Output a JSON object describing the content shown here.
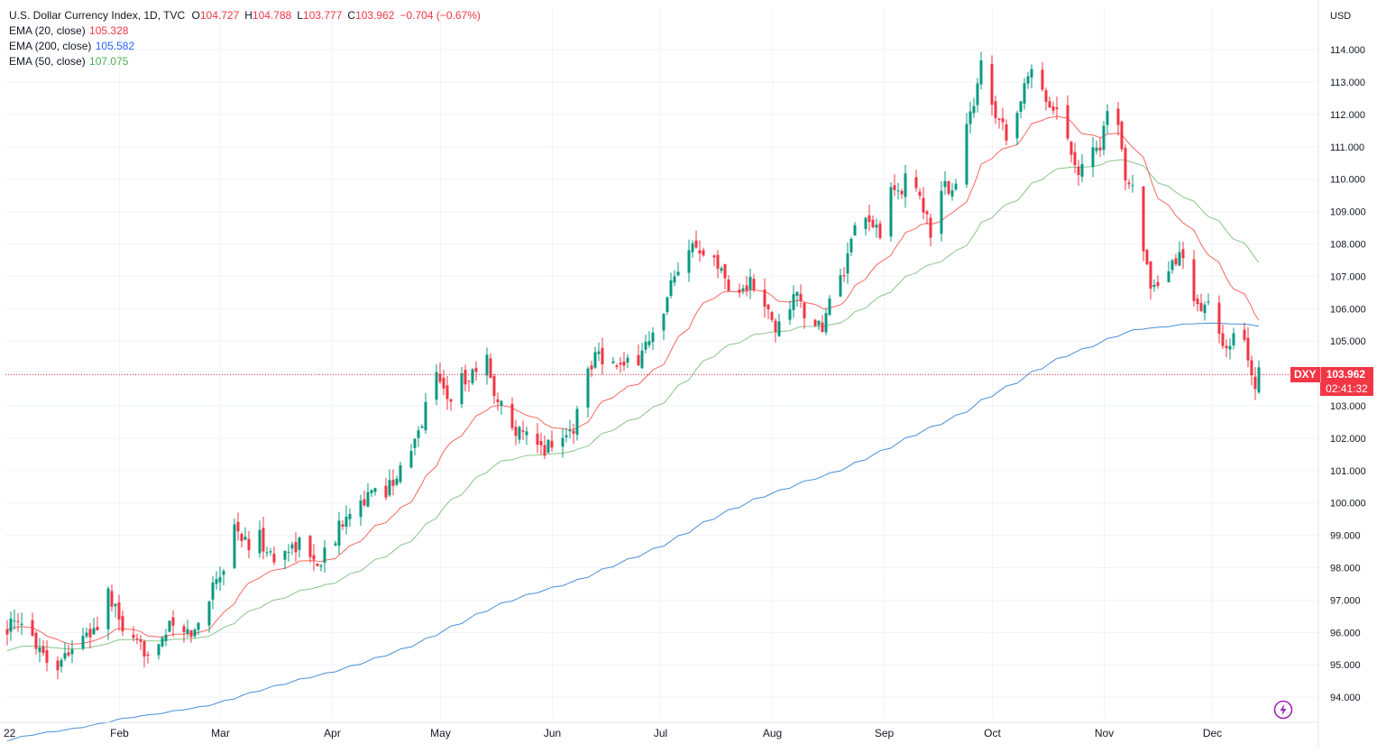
{
  "legend": {
    "title": "U.S. Dollar Currency Index, 1D, TVC",
    "ohlc": [
      {
        "k": "O",
        "v": "104.727"
      },
      {
        "k": "H",
        "v": "104.788"
      },
      {
        "k": "L",
        "v": "103.777"
      },
      {
        "k": "C",
        "v": "103.962"
      }
    ],
    "change": "−0.704 (−0.67%)",
    "emas": [
      {
        "label": "EMA (20, close)",
        "value": "105.328",
        "color": "#f23645"
      },
      {
        "label": "EMA (200, close)",
        "value": "105.582",
        "color": "#2962ff"
      },
      {
        "label": "EMA (50, close)",
        "value": "107.075",
        "color": "#4caf50"
      }
    ]
  },
  "price_badge": {
    "symbol": "DXY",
    "price": "103.962",
    "countdown": "02:41:32",
    "color": "#f23645"
  },
  "colors": {
    "up": "#089981",
    "down": "#f23645",
    "ema20": "#f7685f",
    "ema50": "#8bc58b",
    "ema200": "#4a8fd8",
    "grid": "#f0f3fa",
    "text": "#131722"
  },
  "icons": {
    "replay": "lightning-bolt-icon"
  },
  "chart_data": {
    "type": "candlestick",
    "currency": "USD",
    "ylim": [
      93.8,
      114.9
    ],
    "y_ticks": [
      94,
      95,
      96,
      97,
      98,
      99,
      100,
      101,
      102,
      103,
      104,
      105,
      106,
      107,
      108,
      109,
      110,
      111,
      112,
      113,
      114
    ],
    "y_tick_labels": [
      "94.000",
      "95.000",
      "96.000",
      "97.000",
      "98.000",
      "99.000",
      "100.000",
      "101.000",
      "102.000",
      "103.000",
      "104.000",
      "105.000",
      "106.000",
      "107.000",
      "108.000",
      "109.000",
      "110.000",
      "111.000",
      "112.000",
      "113.000",
      "114.000"
    ],
    "x_labels": [
      {
        "label": "22",
        "day": 0
      },
      {
        "label": "Feb",
        "day": 31
      },
      {
        "label": "Mar",
        "day": 59
      },
      {
        "label": "Apr",
        "day": 90
      },
      {
        "label": "May",
        "day": 120
      },
      {
        "label": "Jun",
        "day": 151
      },
      {
        "label": "Jul",
        "day": 181
      },
      {
        "label": "Aug",
        "day": 212
      },
      {
        "label": "Sep",
        "day": 243
      },
      {
        "label": "Oct",
        "day": 273
      },
      {
        "label": "Nov",
        "day": 304
      },
      {
        "label": "Dec",
        "day": 334
      }
    ],
    "last_day": 349,
    "close_key": [
      [
        0,
        96.2
      ],
      [
        6,
        96.1
      ],
      [
        10,
        95.4
      ],
      [
        13,
        94.8
      ],
      [
        17,
        95.5
      ],
      [
        22,
        95.8
      ],
      [
        25,
        96.2
      ],
      [
        28,
        97.2
      ],
      [
        30,
        96.6
      ],
      [
        34,
        95.6
      ],
      [
        38,
        95.4
      ],
      [
        42,
        95.8
      ],
      [
        46,
        96.2
      ],
      [
        49,
        95.9
      ],
      [
        52,
        96.0
      ],
      [
        55,
        96.6
      ],
      [
        57,
        97.6
      ],
      [
        60,
        98.0
      ],
      [
        63,
        99.3
      ],
      [
        67,
        98.6
      ],
      [
        70,
        98.9
      ],
      [
        74,
        98.2
      ],
      [
        78,
        98.6
      ],
      [
        82,
        98.8
      ],
      [
        85,
        98.1
      ],
      [
        88,
        98.4
      ],
      [
        90,
        98.6
      ],
      [
        94,
        99.8
      ],
      [
        97,
        100.0
      ],
      [
        101,
        100.2
      ],
      [
        105,
        100.4
      ],
      [
        108,
        100.9
      ],
      [
        110,
        101.0
      ],
      [
        114,
        102.1
      ],
      [
        117,
        103.5
      ],
      [
        119,
        103.9
      ],
      [
        121,
        103.7
      ],
      [
        123,
        103.0
      ],
      [
        125,
        103.8
      ],
      [
        128,
        103.9
      ],
      [
        130,
        104.2
      ],
      [
        132,
        104.7
      ],
      [
        134,
        104.0
      ],
      [
        136,
        103.0
      ],
      [
        139,
        102.8
      ],
      [
        142,
        102.1
      ],
      [
        145,
        101.9
      ],
      [
        148,
        101.6
      ],
      [
        151,
        101.9
      ],
      [
        154,
        102.0
      ],
      [
        157,
        102.3
      ],
      [
        159,
        103.3
      ],
      [
        161,
        104.1
      ],
      [
        164,
        104.9
      ],
      [
        166,
        104.1
      ],
      [
        168,
        104.3
      ],
      [
        171,
        104.1
      ],
      [
        175,
        104.5
      ],
      [
        178,
        105.1
      ],
      [
        181,
        105.2
      ],
      [
        184,
        106.7
      ],
      [
        187,
        107.0
      ],
      [
        190,
        108.0
      ],
      [
        193,
        107.9
      ],
      [
        195,
        108.3
      ],
      [
        197,
        107.3
      ],
      [
        200,
        106.8
      ],
      [
        203,
        106.5
      ],
      [
        206,
        106.8
      ],
      [
        209,
        106.2
      ],
      [
        211,
        105.8
      ],
      [
        213,
        105.3
      ],
      [
        216,
        106.0
      ],
      [
        219,
        106.4
      ],
      [
        222,
        105.7
      ],
      [
        224,
        105.2
      ],
      [
        226,
        105.5
      ],
      [
        229,
        106.5
      ],
      [
        232,
        107.1
      ],
      [
        235,
        108.3
      ],
      [
        238,
        108.7
      ],
      [
        242,
        108.4
      ],
      [
        245,
        109.5
      ],
      [
        248,
        109.7
      ],
      [
        251,
        110.3
      ],
      [
        253,
        109.5
      ],
      [
        255,
        108.7
      ],
      [
        257,
        108.0
      ],
      [
        259,
        109.8
      ],
      [
        262,
        109.6
      ],
      [
        264,
        110.0
      ],
      [
        266,
        111.6
      ],
      [
        268,
        112.3
      ],
      [
        270,
        113.8
      ],
      [
        272,
        112.9
      ],
      [
        274,
        112.1
      ],
      [
        276,
        111.7
      ],
      [
        278,
        111.2
      ],
      [
        281,
        112.5
      ],
      [
        284,
        113.3
      ],
      [
        287,
        112.9
      ],
      [
        289,
        112.3
      ],
      [
        292,
        112.1
      ],
      [
        294,
        111.2
      ],
      [
        297,
        110.3
      ],
      [
        300,
        110.8
      ],
      [
        303,
        111.1
      ],
      [
        306,
        112.4
      ],
      [
        308,
        111.4
      ],
      [
        310,
        110.2
      ],
      [
        313,
        109.7
      ],
      [
        315,
        108.0
      ],
      [
        317,
        106.4
      ],
      [
        320,
        106.6
      ],
      [
        323,
        107.3
      ],
      [
        326,
        107.8
      ],
      [
        328,
        106.4
      ],
      [
        330,
        105.9
      ],
      [
        332,
        106.3
      ],
      [
        334,
        105.8
      ],
      [
        336,
        105.1
      ],
      [
        338,
        104.5
      ],
      [
        341,
        105.3
      ],
      [
        343,
        105.0
      ],
      [
        346,
        103.5
      ],
      [
        348,
        104.7
      ],
      [
        349,
        103.962
      ]
    ]
  }
}
